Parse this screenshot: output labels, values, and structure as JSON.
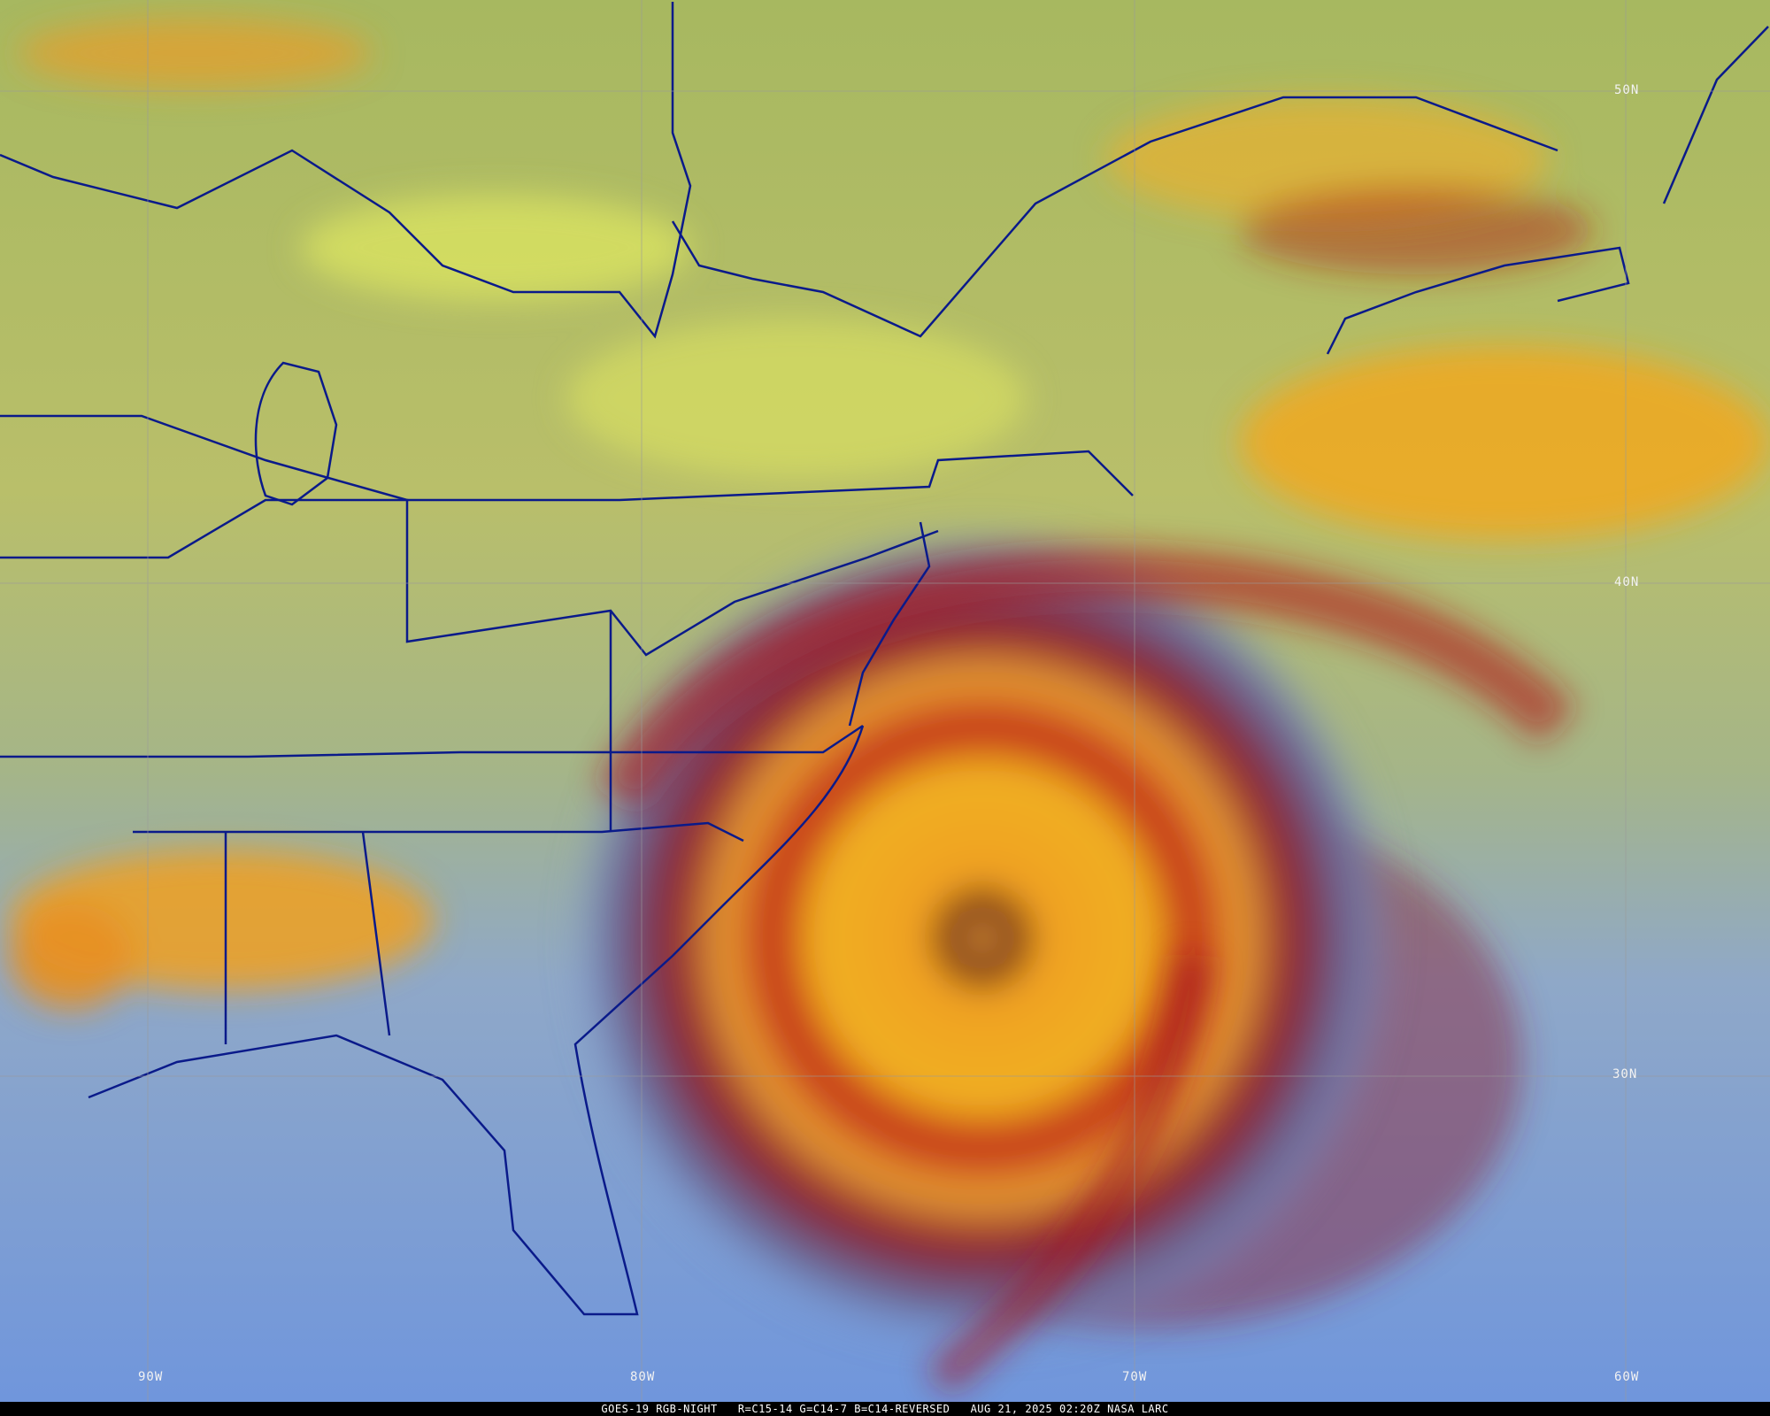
{
  "caption": {
    "satellite": "GOES-19 RGB-NIGHT",
    "channels": "R=C15-14 G=C14-7 B=C14-REVERSED",
    "timestamp": "AUG 21, 2025 02:20Z",
    "source": "NASA LARC"
  },
  "grid_labels": {
    "lat": [
      "50N",
      "40N",
      "30N"
    ],
    "lon": [
      "90W",
      "80W",
      "70W",
      "60W"
    ]
  },
  "colors": {
    "land_cloud": "#b8c060",
    "high_cloud": "#f0a020",
    "cold_cloud": "#b01818",
    "ocean": "#7fa0d8",
    "boundaries": "#0a1a8a",
    "grid": "#9a9a9a"
  }
}
